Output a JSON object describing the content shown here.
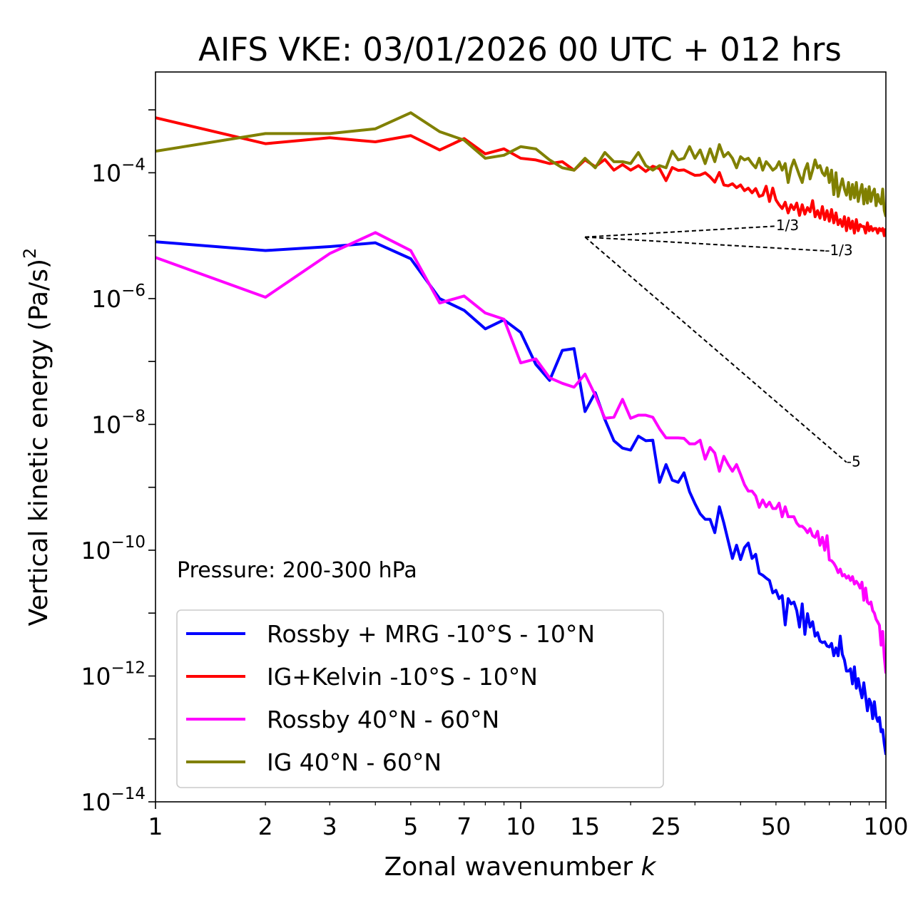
{
  "chart_data": {
    "type": "line",
    "title": "AIFS VKE: 03/01/2026 00 UTC + 012 hrs",
    "xlabel": "Zonal wavenumber",
    "xlabel_var": "k",
    "ylabel": "Vertical kinetic energy",
    "ylabel_unit": "(Pa/s)",
    "ylabel_power": "2",
    "xscale": "log",
    "yscale": "log",
    "xlim": [
      1,
      100
    ],
    "ylim": [
      1e-14,
      0.004
    ],
    "x_ticks": [
      {
        "value": 1,
        "label": "1"
      },
      {
        "value": 2,
        "label": "2"
      },
      {
        "value": 3,
        "label": "3"
      },
      {
        "value": 5,
        "label": "5"
      },
      {
        "value": 7,
        "label": "7"
      },
      {
        "value": 10,
        "label": "10"
      },
      {
        "value": 15,
        "label": "15"
      },
      {
        "value": 25,
        "label": "25"
      },
      {
        "value": 50,
        "label": "50"
      },
      {
        "value": 100,
        "label": "100"
      }
    ],
    "y_ticks": [
      {
        "exp": -4,
        "base": "10",
        "power": "−4"
      },
      {
        "exp": -6,
        "base": "10",
        "power": "−6"
      },
      {
        "exp": -8,
        "base": "10",
        "power": "−8"
      },
      {
        "exp": -10,
        "base": "10",
        "power": "−10"
      },
      {
        "exp": -12,
        "base": "10",
        "power": "−12"
      },
      {
        "exp": -14,
        "base": "10",
        "power": "−14"
      }
    ],
    "annotation": "Pressure: 200-300 hPa",
    "legend_position": "lower-left",
    "reference_lines": [
      {
        "label": "1/3",
        "slope": 0.3333,
        "x0": 15,
        "y0": 9.5e-06,
        "x1": 50
      },
      {
        "label": "-1/3",
        "slope": -0.3333,
        "x0": 15,
        "y0": 9.5e-06,
        "x1": 68
      },
      {
        "label": "-5",
        "slope": -5,
        "x0": 15,
        "y0": 9.5e-06,
        "x1": 78
      }
    ],
    "series": [
      {
        "name": "Rossby + MRG -10°S - 10°N",
        "color": "#0000ff",
        "x": [
          1,
          2,
          3,
          4,
          5,
          6,
          7,
          8,
          9,
          10,
          11,
          12,
          13,
          14,
          15,
          16,
          17,
          18,
          19,
          20,
          21,
          22,
          23,
          24,
          25,
          26,
          27,
          28,
          29,
          30,
          31,
          32,
          33,
          34,
          35,
          36,
          37,
          38,
          39,
          40,
          41,
          42,
          43,
          44,
          45,
          46,
          47,
          48,
          49,
          50,
          51,
          52,
          53,
          54,
          55,
          56,
          57,
          58,
          59,
          60,
          61,
          62,
          63,
          64,
          65,
          66,
          67,
          68,
          69,
          70,
          71,
          72,
          73,
          74,
          75,
          76,
          77,
          78,
          79,
          80,
          81,
          82,
          83,
          84,
          85,
          86,
          87,
          88,
          89,
          90,
          91,
          92,
          93,
          94,
          95,
          96,
          97,
          98,
          99,
          100
        ],
        "y": [
          8e-06,
          5.8e-06,
          6.7e-06,
          7.7e-06,
          4.3e-06,
          1e-06,
          6.5e-07,
          3.3e-07,
          4.6e-07,
          2.9e-07,
          9e-08,
          5e-08,
          1.5e-07,
          1.6e-07,
          1.6e-08,
          3.2e-08,
          1.2e-08,
          5.5e-09,
          4.2e-09,
          3.9e-09,
          6.5e-09,
          5.5e-09,
          5.6e-09,
          1.2e-09,
          2.3e-09,
          1.3e-09,
          1.2e-09,
          1.7e-09,
          8.5e-10,
          5.5e-10,
          3.8e-10,
          3.1e-10,
          3.1e-10,
          1.9e-10,
          4.9e-10,
          2.7e-10,
          1.4e-10,
          7.4e-11,
          1.2e-10,
          7.1e-11,
          1.1e-10,
          1.3e-10,
          7.4e-11,
          8.6e-11,
          4.3e-11,
          4e-11,
          3.6e-11,
          3.3e-11,
          2.1e-11,
          2.3e-11,
          1.7e-11,
          1.9e-11,
          6.5e-12,
          1.7e-11,
          1.4e-11,
          1.5e-11,
          1.1e-11,
          6e-12,
          1.4e-11,
          4.6e-12,
          9.8e-12,
          6e-12,
          7.3e-12,
          4.3e-12,
          4.9e-12,
          3.6e-12,
          3.4e-12,
          3.5e-12,
          3e-12,
          2.9e-12,
          3.3e-12,
          2.1e-12,
          2.8e-12,
          2.1e-12,
          4.3e-12,
          2.2e-12,
          1.8e-12,
          1.2e-12,
          1.2e-12,
          1.3e-12,
          7.5e-13,
          1.4e-12,
          6.4e-13,
          9.1e-13,
          6.1e-13,
          4.5e-13,
          7.8e-13,
          4.7e-13,
          2.8e-13,
          4.3e-13,
          3.7e-13,
          2.1e-13,
          3.9e-13,
          2.3e-13,
          1.9e-13,
          2.2e-13,
          1.3e-13,
          1.4e-13,
          8.3e-14,
          5.6e-14
        ]
      },
      {
        "name": "IG+Kelvin -10°S - 10°N",
        "color": "#ff0000",
        "x": [
          1,
          2,
          3,
          4,
          5,
          6,
          7,
          8,
          9,
          10,
          11,
          12,
          13,
          14,
          15,
          16,
          17,
          18,
          19,
          20,
          21,
          22,
          23,
          24,
          25,
          26,
          27,
          28,
          29,
          30,
          31,
          32,
          33,
          34,
          35,
          36,
          37,
          38,
          39,
          40,
          41,
          42,
          43,
          44,
          45,
          46,
          47,
          48,
          49,
          50,
          51,
          52,
          53,
          54,
          55,
          56,
          57,
          58,
          59,
          60,
          61,
          62,
          63,
          64,
          65,
          66,
          67,
          68,
          69,
          70,
          71,
          72,
          73,
          74,
          75,
          76,
          77,
          78,
          79,
          80,
          81,
          82,
          83,
          84,
          85,
          86,
          87,
          88,
          89,
          90,
          91,
          92,
          93,
          94,
          95,
          96,
          97,
          98,
          99,
          100
        ],
        "y": [
          0.00075,
          0.00029,
          0.00036,
          0.00031,
          0.00039,
          0.00023,
          0.00035,
          0.0002,
          0.00024,
          0.00017,
          0.00016,
          0.00014,
          0.00015,
          0.00011,
          0.00016,
          0.000125,
          0.000163,
          0.00011,
          0.000135,
          0.00011,
          0.00013,
          0.000105,
          0.000127,
          0.000116,
          7.5e-05,
          0.000121,
          0.000109,
          0.000111,
          0.0001,
          9.1e-05,
          9.2e-05,
          0.0001,
          8.6e-05,
          7.1e-05,
          0.000101,
          6.4e-05,
          6.2e-05,
          6.7e-05,
          5.8e-05,
          6.4e-05,
          5.2e-05,
          5.7e-05,
          4.8e-05,
          5.6e-05,
          4.2e-05,
          4.4e-05,
          6.1e-05,
          3.5e-05,
          5.7e-05,
          3.7e-05,
          3.1e-05,
          2.7e-05,
          3.4e-05,
          2.3e-05,
          3.1e-05,
          2.6e-05,
          3.3e-05,
          2.1e-05,
          3.1e-05,
          2.2e-05,
          2.8e-05,
          2.4e-05,
          3.6e-05,
          2e-05,
          2.5e-05,
          1.9e-05,
          2.9e-05,
          1.8e-05,
          2.5e-05,
          1.7e-05,
          2.6e-05,
          1.6e-05,
          2.3e-05,
          1.5e-05,
          1.8e-05,
          1.4e-05,
          2e-05,
          1.2e-05,
          1.9e-05,
          1.3e-05,
          1.7e-05,
          1.1e-05,
          1.8e-05,
          1.2e-05,
          1.5e-05,
          1.4e-05,
          1.4e-05,
          1.1e-05,
          1.6e-05,
          1.2e-05,
          1.4e-05,
          1.2e-05,
          1.3e-05,
          1.3e-05,
          1.1e-05,
          1.3e-05,
          1.2e-05,
          1.3e-05,
          1e-05,
          1.3e-05
        ]
      },
      {
        "name": "Rossby 40°N - 60°N",
        "color": "#ff00ff",
        "x": [
          1,
          2,
          3,
          4,
          5,
          6,
          7,
          8,
          9,
          10,
          11,
          12,
          13,
          14,
          15,
          16,
          17,
          18,
          19,
          20,
          21,
          22,
          23,
          24,
          25,
          26,
          27,
          28,
          29,
          30,
          31,
          32,
          33,
          34,
          35,
          36,
          37,
          38,
          39,
          40,
          41,
          42,
          43,
          44,
          45,
          46,
          47,
          48,
          49,
          50,
          51,
          52,
          53,
          54,
          55,
          56,
          57,
          58,
          59,
          60,
          61,
          62,
          63,
          64,
          65,
          66,
          67,
          68,
          69,
          70,
          71,
          72,
          73,
          74,
          75,
          76,
          77,
          78,
          79,
          80,
          81,
          82,
          83,
          84,
          85,
          86,
          87,
          88,
          89,
          90,
          91,
          92,
          93,
          94,
          95,
          96,
          97,
          98,
          99,
          100
        ],
        "y": [
          4.5e-06,
          1.05e-06,
          5.2e-06,
          1.12e-05,
          5.8e-06,
          8.5e-07,
          1.1e-06,
          5.9e-07,
          4.7e-07,
          9.5e-08,
          1.1e-07,
          5.5e-08,
          4.5e-08,
          3.9e-08,
          6.3e-08,
          2.9e-08,
          1.25e-08,
          1.3e-08,
          2.5e-08,
          1.25e-08,
          1.4e-08,
          1.4e-08,
          1.3e-08,
          8.5e-09,
          6.1e-09,
          6.1e-09,
          6.1e-09,
          6e-09,
          4.9e-09,
          4.9e-09,
          5.6e-09,
          2.8e-09,
          4.3e-09,
          3.5e-09,
          1.8e-09,
          3.1e-09,
          2.3e-09,
          1.8e-09,
          2.3e-09,
          1.6e-09,
          1.1e-09,
          8.7e-10,
          8.7e-10,
          7.3e-10,
          4.8e-10,
          6.3e-10,
          4.9e-10,
          5.8e-10,
          4.6e-10,
          4.6e-10,
          5.6e-10,
          3.4e-10,
          4.9e-10,
          3.4e-10,
          3.4e-10,
          3.4e-10,
          2.7e-10,
          2.4e-10,
          2.4e-10,
          2.2e-10,
          1.9e-10,
          2.2e-10,
          1.7e-10,
          1.6e-10,
          2e-10,
          1.2e-10,
          1.6e-10,
          1e-10,
          1.7e-10,
          7e-11,
          6.8e-11,
          6.2e-11,
          5.4e-11,
          4.4e-11,
          5e-11,
          3.9e-11,
          4.1e-11,
          3.6e-11,
          3.9e-11,
          3.3e-11,
          3.8e-11,
          2.9e-11,
          3.2e-11,
          2.9e-11,
          2.5e-11,
          3.1e-11,
          1.6e-11,
          2.5e-11,
          1.5e-11,
          1.4e-11,
          1.5e-11,
          1.1e-11,
          1e-11,
          8e-12,
          7.2e-12,
          6.4e-12,
          3.1e-12,
          5.1e-12,
          2e-12,
          1.1e-12
        ]
      },
      {
        "name": "IG 40°N - 60°N",
        "color": "#808000",
        "x": [
          1,
          2,
          3,
          4,
          5,
          6,
          7,
          8,
          9,
          10,
          11,
          12,
          13,
          14,
          15,
          16,
          17,
          18,
          19,
          20,
          21,
          22,
          23,
          24,
          25,
          26,
          27,
          28,
          29,
          30,
          31,
          32,
          33,
          34,
          35,
          36,
          37,
          38,
          39,
          40,
          41,
          42,
          43,
          44,
          45,
          46,
          47,
          48,
          49,
          50,
          51,
          52,
          53,
          54,
          55,
          56,
          57,
          58,
          59,
          60,
          61,
          62,
          63,
          64,
          65,
          66,
          67,
          68,
          69,
          70,
          71,
          72,
          73,
          74,
          75,
          76,
          77,
          78,
          79,
          80,
          81,
          82,
          83,
          84,
          85,
          86,
          87,
          88,
          89,
          90,
          91,
          92,
          93,
          94,
          95,
          96,
          97,
          98,
          99,
          100
        ],
        "y": [
          0.00022,
          0.00042,
          0.00042,
          0.0005,
          0.0009,
          0.00045,
          0.00033,
          0.00017,
          0.00019,
          0.00026,
          0.00024,
          0.00016,
          0.00012,
          0.00011,
          0.00017,
          0.00012,
          0.00021,
          0.00015,
          0.00015,
          0.00014,
          0.00021,
          0.00013,
          0.00011,
          0.00013,
          0.00012,
          0.00022,
          0.00016,
          0.00017,
          0.00026,
          0.00017,
          0.00023,
          0.00014,
          0.00024,
          0.00015,
          0.00028,
          0.00018,
          0.00021,
          0.00017,
          0.00012,
          0.00018,
          0.00016,
          0.00017,
          0.00014,
          0.00012,
          0.00017,
          0.00011,
          0.00015,
          0.00013,
          0.00011,
          0.00012,
          0.00015,
          0.00011,
          0.00014,
          7e-05,
          0.00012,
          0.00016,
          0.00012,
          9e-05,
          7e-05,
          0.00011,
          0.00014,
          8e-05,
          0.00011,
          0.00016,
          0.00012,
          0.00013,
          0.0001,
          9e-05,
          0.00012,
          7e-05,
          0.00011,
          4.5e-05,
          0.0001,
          4.2e-05,
          6e-05,
          8e-05,
          5.5e-05,
          4.4e-05,
          7e-05,
          3.8e-05,
          6.5e-05,
          4e-05,
          7e-05,
          3.5e-05,
          5e-05,
          6.5e-05,
          3.2e-05,
          5.5e-05,
          3.3e-05,
          6e-05,
          3.5e-05,
          4.8e-05,
          5.5e-05,
          3e-05,
          4.5e-05,
          3.5e-05,
          3.2e-05,
          5.5e-05,
          2.5e-05,
          2e-05
        ]
      }
    ]
  }
}
